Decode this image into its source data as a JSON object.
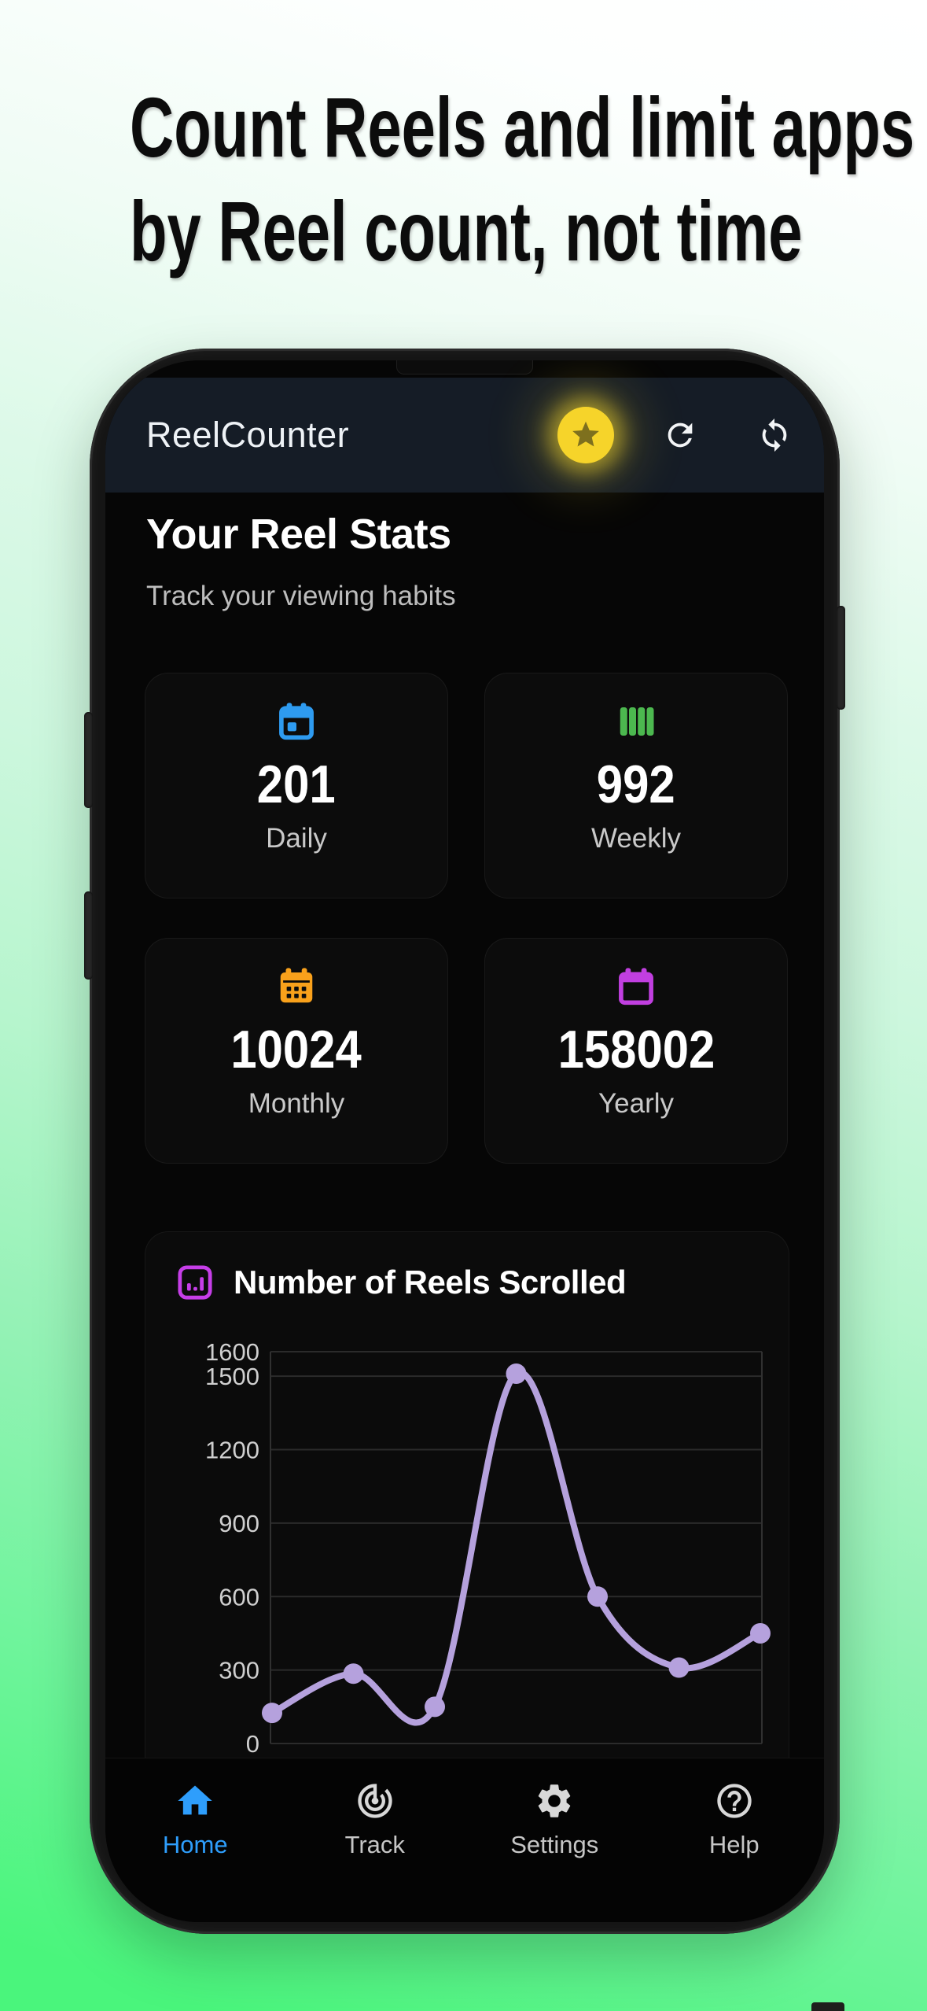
{
  "hero": {
    "title_line1": "Count Reels and limit apps",
    "title_line2": "by Reel count, not time"
  },
  "app": {
    "appbar": {
      "title": "ReelCounter",
      "icons": [
        "star",
        "refresh",
        "sync"
      ]
    },
    "stats_header": {
      "title": "Your Reel Stats",
      "subtitle": "Track your viewing habits"
    },
    "stat_cards": [
      {
        "value": "201",
        "label": "Daily",
        "icon": "calendar-day-icon",
        "color": "#2e9bf0"
      },
      {
        "value": "992",
        "label": "Weekly",
        "icon": "calendar-week-icon",
        "color": "#4cb84f"
      },
      {
        "value": "10024",
        "label": "Monthly",
        "icon": "calendar-month-icon",
        "color": "#f9a11b"
      },
      {
        "value": "158002",
        "label": "Yearly",
        "icon": "calendar-year-icon",
        "color": "#c13fe0"
      }
    ],
    "chart_card": {
      "title": "Number of Reels Scrolled",
      "icon": "bar-chart-icon",
      "icon_color": "#c63ee8"
    },
    "bottom_nav": [
      {
        "label": "Home",
        "icon": "home-icon",
        "active": true
      },
      {
        "label": "Track",
        "icon": "track-icon",
        "active": false
      },
      {
        "label": "Settings",
        "icon": "settings-icon",
        "active": false
      },
      {
        "label": "Help",
        "icon": "help-icon",
        "active": false
      }
    ],
    "colors": {
      "appbar_bg": "#151c26",
      "screen_bg": "#060606",
      "card_bg": "#0c0c0c",
      "nav_active_blue": "#2e9efc",
      "star_yellow": "#f6d42a",
      "chart_line_lavender": "#b5a1dd",
      "background_green": "#4af57c",
      "background_mint": "#d5f8e3"
    }
  },
  "chart_data": {
    "type": "line",
    "title": "Number of Reels Scrolled",
    "points": [
      125,
      285,
      150,
      1510,
      600,
      310,
      450
    ],
    "yticks": [
      1600,
      1500,
      1200,
      900,
      600,
      300,
      0
    ],
    "ylim": [
      0,
      1600
    ],
    "grid": true,
    "legend_position": "none",
    "x_axis_labels": "hidden (cut off by bottom navigation)",
    "line_color": "#b5a1dd",
    "marker": "circle",
    "gridline_color": "#2b2b2b",
    "tick_label_color": "#cfcfcf"
  }
}
